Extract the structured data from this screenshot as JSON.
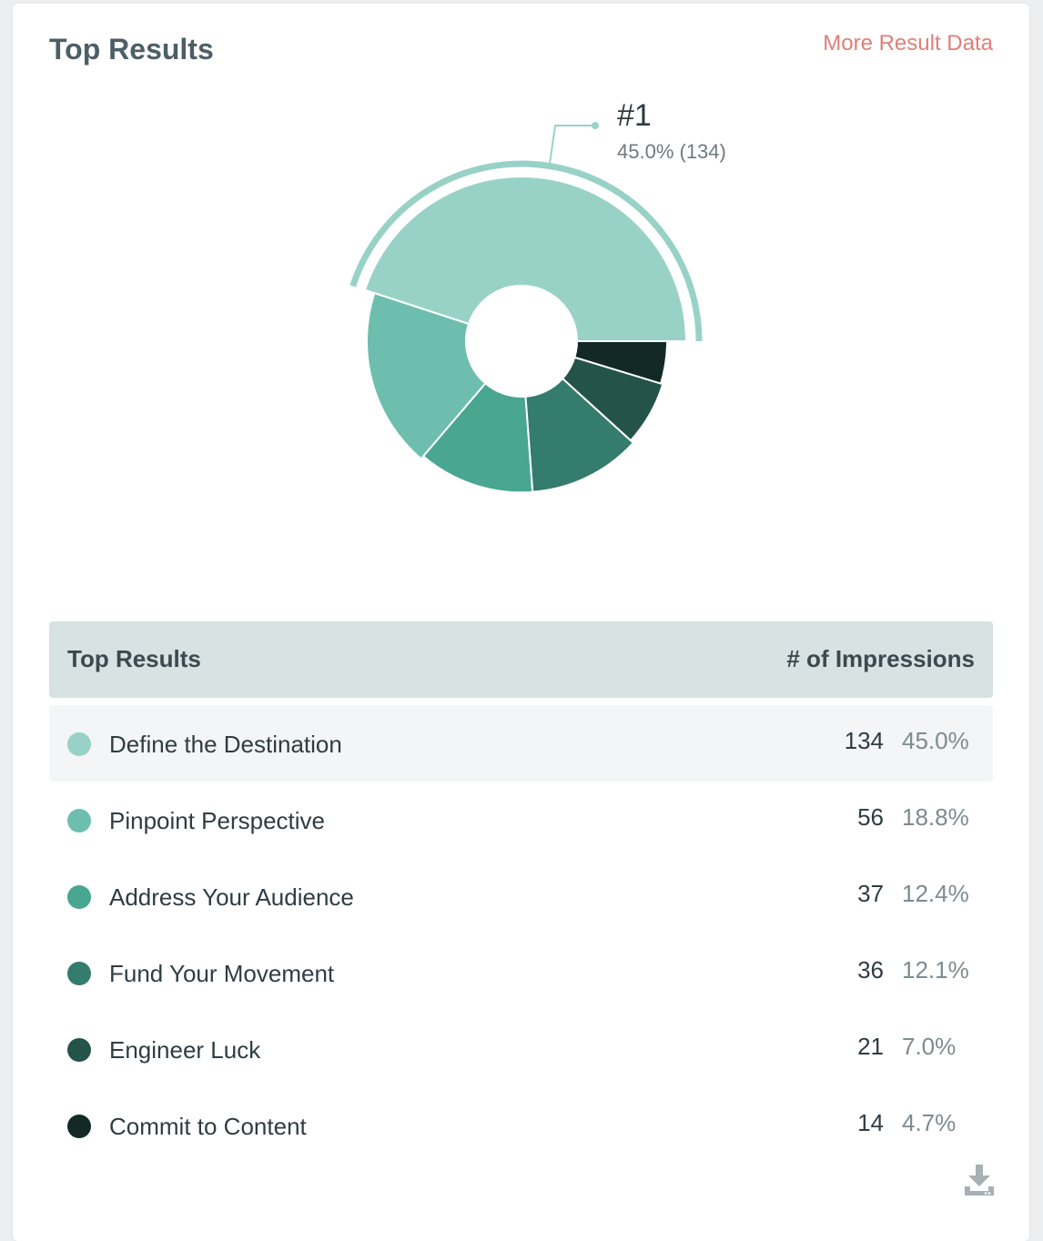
{
  "header": {
    "title": "Top Results",
    "more_link": "More Result Data"
  },
  "callout": {
    "rank": "#1",
    "value": "45.0% (134)"
  },
  "table": {
    "col_left": "Top Results",
    "col_right": "# of Impressions",
    "rows": [
      {
        "label": "Define the Destination",
        "count": "134",
        "pct": "45.0%",
        "color": "#98d2c6"
      },
      {
        "label": "Pinpoint Perspective",
        "count": "56",
        "pct": "18.8%",
        "color": "#6dbeae"
      },
      {
        "label": "Address Your Audience",
        "count": "37",
        "pct": "12.4%",
        "color": "#48a691"
      },
      {
        "label": "Fund Your Movement",
        "count": "36",
        "pct": "12.1%",
        "color": "#347c6d"
      },
      {
        "label": "Engineer Luck",
        "count": "21",
        "pct": "7.0%",
        "color": "#24534a"
      },
      {
        "label": "Commit to Content",
        "count": "14",
        "pct": "4.7%",
        "color": "#132925"
      }
    ]
  },
  "chart_data": {
    "type": "pie",
    "variant": "polar-area-donut",
    "title": "",
    "categories": [
      "Define the Destination",
      "Pinpoint Perspective",
      "Address Your Audience",
      "Fund Your Movement",
      "Engineer Luck",
      "Commit to Content"
    ],
    "values": [
      134,
      56,
      37,
      36,
      21,
      14
    ],
    "percentages": [
      45.0,
      18.8,
      12.4,
      12.1,
      7.0,
      4.7
    ],
    "colors": [
      "#98d2c6",
      "#6dbeae",
      "#48a691",
      "#347c6d",
      "#24534a",
      "#132925"
    ],
    "highlighted": "Define the Destination"
  },
  "icons": {
    "download": "download-icon"
  }
}
